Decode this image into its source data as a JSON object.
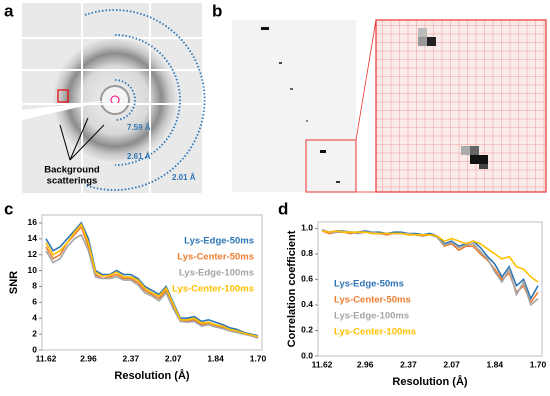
{
  "panels": {
    "a": "a",
    "b": "b",
    "c": "c",
    "d": "d"
  },
  "panel_a": {
    "rings": [
      "7.59 Å",
      "2.61 Å",
      "2.01 Å"
    ],
    "callout": [
      "Background",
      "scatterings"
    ]
  },
  "chart_data": [
    {
      "type": "line",
      "ylabel": "SNR",
      "xlabel": "Resolution (Å)",
      "categories": [
        "11.62",
        null,
        null,
        null,
        null,
        null,
        "2.96",
        null,
        null,
        null,
        null,
        null,
        "2.37",
        null,
        null,
        null,
        null,
        null,
        "2.07",
        null,
        null,
        null,
        null,
        null,
        "1.84",
        null,
        null,
        null,
        null,
        null,
        "1.70"
      ],
      "ylim": [
        0,
        17
      ],
      "yticks": [
        0,
        2,
        4,
        6,
        8,
        10,
        12,
        14,
        16
      ],
      "legend": "upper right",
      "series": [
        {
          "name": "Lys-Edge-50ms",
          "color": "#2e75b6",
          "values": [
            14,
            12.5,
            13,
            14,
            15,
            16,
            14,
            10,
            9.5,
            9.5,
            10,
            9.5,
            9.5,
            9,
            8,
            7.5,
            7,
            8,
            6,
            4,
            4,
            4.2,
            3.6,
            3.8,
            3.5,
            3.2,
            2.8,
            2.6,
            2.2,
            2,
            1.8
          ]
        },
        {
          "name": "Lys-Center-50ms",
          "color": "#ed7d31",
          "values": [
            13,
            11.5,
            12,
            13.5,
            14.5,
            15.5,
            13,
            9.5,
            9,
            9.2,
            9.5,
            9,
            9,
            8.5,
            7.5,
            7,
            6.5,
            7.5,
            5.5,
            3.8,
            3.6,
            3.8,
            3.2,
            3.3,
            3,
            2.8,
            2.5,
            2.3,
            2,
            1.8,
            1.6
          ]
        },
        {
          "name": "Lys-Edge-100ms",
          "color": "#a5a5a5",
          "values": [
            12.5,
            11,
            11.5,
            13,
            14,
            14.5,
            12.5,
            9.2,
            9,
            9,
            9.2,
            8.8,
            8.8,
            8.2,
            7.2,
            6.8,
            6.2,
            7.2,
            5.2,
            3.6,
            3.5,
            3.6,
            3,
            3.2,
            2.9,
            2.7,
            2.4,
            2.2,
            2,
            1.8,
            1.5
          ]
        },
        {
          "name": "Lys-Center-100ms",
          "color": "#ffc000",
          "values": [
            13.5,
            12,
            12.5,
            13.5,
            14.8,
            15.8,
            13.5,
            9.8,
            9.3,
            9.4,
            9.8,
            9.2,
            9.2,
            8.8,
            7.8,
            7.2,
            6.8,
            7.8,
            5.8,
            3.8,
            3.8,
            4,
            3.4,
            3.5,
            3.2,
            3,
            2.6,
            2.4,
            2.1,
            1.9,
            1.7
          ]
        }
      ]
    },
    {
      "type": "line",
      "ylabel": "Correlation coefficient",
      "xlabel": "Resolution (Å)",
      "categories": [
        "11.62",
        null,
        null,
        null,
        null,
        null,
        "2.96",
        null,
        null,
        null,
        null,
        null,
        "2.37",
        null,
        null,
        null,
        null,
        null,
        "2.07",
        null,
        null,
        null,
        null,
        null,
        "1.84",
        null,
        null,
        null,
        null,
        null,
        "1.70"
      ],
      "ylim": [
        0,
        1.05
      ],
      "yticks": [
        {
          "value": 0,
          "label": "0.0"
        },
        0.2,
        0.4,
        0.6,
        0.8,
        {
          "value": 1,
          "label": "1.0"
        }
      ],
      "legend": "lower left",
      "series": [
        {
          "name": "Lys-Edge-50ms",
          "color": "#2e75b6",
          "values": [
            0.99,
            0.97,
            0.98,
            0.98,
            0.97,
            0.97,
            0.98,
            0.97,
            0.97,
            0.96,
            0.97,
            0.97,
            0.96,
            0.96,
            0.95,
            0.96,
            0.94,
            0.88,
            0.9,
            0.86,
            0.88,
            0.9,
            0.85,
            0.78,
            0.72,
            0.62,
            0.7,
            0.55,
            0.6,
            0.45,
            0.55
          ]
        },
        {
          "name": "Lys-Center-50ms",
          "color": "#ed7d31",
          "values": [
            0.98,
            0.96,
            0.97,
            0.97,
            0.96,
            0.97,
            0.97,
            0.96,
            0.96,
            0.95,
            0.96,
            0.96,
            0.95,
            0.95,
            0.94,
            0.95,
            0.93,
            0.86,
            0.88,
            0.83,
            0.86,
            0.86,
            0.8,
            0.75,
            0.68,
            0.6,
            0.65,
            0.5,
            0.55,
            0.42,
            0.5
          ]
        },
        {
          "name": "Lys-Edge-100ms",
          "color": "#a5a5a5",
          "values": [
            0.99,
            0.97,
            0.97,
            0.98,
            0.97,
            0.96,
            0.97,
            0.97,
            0.96,
            0.96,
            0.96,
            0.96,
            0.96,
            0.95,
            0.95,
            0.95,
            0.93,
            0.87,
            0.89,
            0.85,
            0.87,
            0.88,
            0.82,
            0.76,
            0.66,
            0.58,
            0.68,
            0.48,
            0.58,
            0.4,
            0.45
          ]
        },
        {
          "name": "Lys-Center-100ms",
          "color": "#ffc000",
          "values": [
            0.98,
            0.97,
            0.98,
            0.97,
            0.97,
            0.97,
            0.97,
            0.96,
            0.96,
            0.96,
            0.96,
            0.96,
            0.95,
            0.95,
            0.95,
            0.95,
            0.94,
            0.9,
            0.92,
            0.9,
            0.88,
            0.9,
            0.88,
            0.84,
            0.8,
            0.76,
            0.78,
            0.7,
            0.68,
            0.62,
            0.58
          ]
        }
      ]
    }
  ]
}
